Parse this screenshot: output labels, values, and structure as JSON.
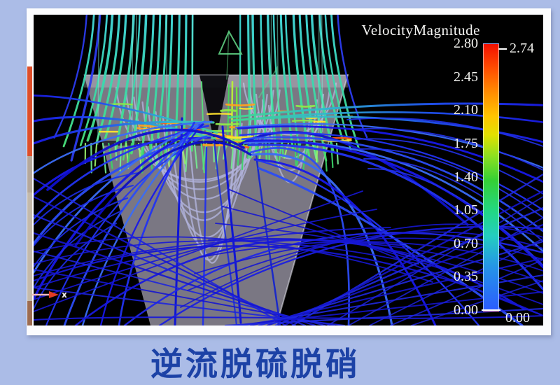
{
  "page": {
    "background_color": "#abbce7",
    "caption": "逆流脱硫脱硝",
    "caption_color": "#1c42a6"
  },
  "legend": {
    "title": "VelocityMagnitude",
    "ticks": [
      "2.80",
      "2.45",
      "2.10",
      "1.75",
      "1.40",
      "1.05",
      "0.70",
      "0.35",
      "0.00"
    ],
    "max_marker": "2.74",
    "min_marker": "0.00"
  },
  "axis_indicator": {
    "label": "x"
  },
  "chart_data": {
    "type": "streamline",
    "title": "VelocityMagnitude",
    "caption": "逆流脱硫脱硝",
    "colorbar": {
      "orientation": "vertical",
      "position": "right",
      "range": [
        0.0,
        2.8
      ],
      "tick_values": [
        2.8,
        2.45,
        2.1,
        1.75,
        1.4,
        1.05,
        0.7,
        0.35,
        0.0
      ],
      "max_value_marker": 2.74,
      "min_value_marker": 0.0,
      "colormap_top_to_bottom": [
        "#f31000",
        "#ff8c00",
        "#ffc400",
        "#8ce020",
        "#35d034",
        "#22d786",
        "#2596e6",
        "#2b5bff"
      ]
    },
    "scene": {
      "background": "#000000",
      "axes_triad_labels": [
        "x"
      ],
      "features": [
        "funnel-shaped vessel silhouette (semi-transparent gray)",
        "dense vertical inlet streamline bundles colored cyan-green",
        "high-velocity yellow/orange streaks near central nozzle gap",
        "blue arcing recirculation streamlines fanning to both sides"
      ]
    }
  }
}
